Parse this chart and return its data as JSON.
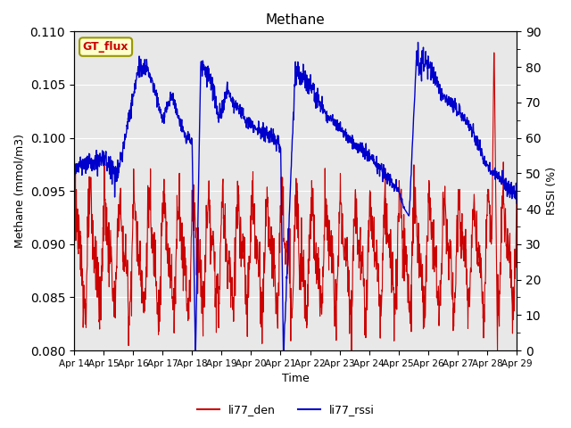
{
  "title": "Methane",
  "ylabel_left": "Methane (mmol/m3)",
  "ylabel_right": "RSSI (%)",
  "xlabel": "Time",
  "ylim_left": [
    0.08,
    0.11
  ],
  "ylim_right": [
    0,
    90
  ],
  "yticks_left": [
    0.08,
    0.085,
    0.09,
    0.095,
    0.1,
    0.105,
    0.11
  ],
  "yticks_right": [
    0,
    10,
    20,
    30,
    40,
    50,
    60,
    70,
    80,
    90
  ],
  "xtick_labels": [
    "Apr 14",
    "Apr 15",
    "Apr 16",
    "Apr 17",
    "Apr 18",
    "Apr 19",
    "Apr 20",
    "Apr 21",
    "Apr 22",
    "Apr 23",
    "Apr 24",
    "Apr 25",
    "Apr 26",
    "Apr 27",
    "Apr 28",
    "Apr 29"
  ],
  "color_red": "#CC0000",
  "color_blue": "#0000CC",
  "legend_label_red": "li77_den",
  "legend_label_blue": "li77_rssi",
  "annotation_text": "GT_flux",
  "annotation_facecolor": "#FFFFCC",
  "annotation_edgecolor": "#999900",
  "annotation_textcolor": "#CC0000",
  "bg_color": "#E8E8E8",
  "fig_bg_color": "#FFFFFF",
  "n_points": 1500
}
